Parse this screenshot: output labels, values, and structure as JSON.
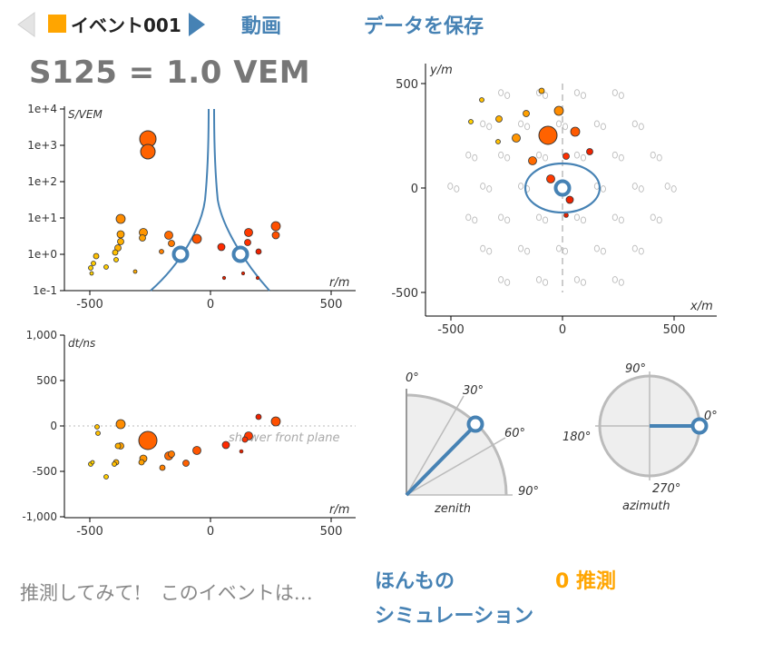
{
  "header": {
    "event_name": "イベント001",
    "event_color": "#ffa500",
    "movie_label": "動画",
    "save_label": "データを保存"
  },
  "s125_label": "S125 = 1.0 VEM",
  "ldf_plot": {
    "y_label": "S/VEM",
    "x_label": "r/m",
    "y_ticks": [
      "1e-1",
      "1e+0",
      "1e+1",
      "1e+2",
      "1e+3",
      "1e+4"
    ],
    "x_ticks": [
      "-500",
      "0",
      "500"
    ]
  },
  "timing_plot": {
    "y_label": "dt/ns",
    "x_label": "r/m",
    "y_ticks": [
      "1,000",
      "500",
      "0",
      "-500",
      "-1,000"
    ],
    "x_ticks": [
      "-500",
      "0",
      "500"
    ],
    "plane_label": "shower front plane"
  },
  "map_plot": {
    "y_label": "y/m",
    "x_label": "x/m",
    "y_ticks": [
      "500",
      "0",
      "-500"
    ],
    "x_ticks": [
      "-500",
      "0",
      "500"
    ]
  },
  "zenith_dial": {
    "ticks": [
      "0°",
      "30°",
      "60°",
      "90°"
    ],
    "label": "zenith",
    "value_deg": 40
  },
  "azimuth_dial": {
    "ticks": [
      "90°",
      "180°",
      "0°",
      "270°"
    ],
    "label": "azimuth",
    "value_deg": 0
  },
  "footer": {
    "prompt": "推測してみて!　このイベントは…",
    "real_label": "ほんもの",
    "sim_label": "シミュレーション",
    "guess_count": "0 推測"
  },
  "colors": {
    "accent": "#4682b4",
    "event": "#ffa500",
    "station_outline": "#bbbbbb"
  }
}
